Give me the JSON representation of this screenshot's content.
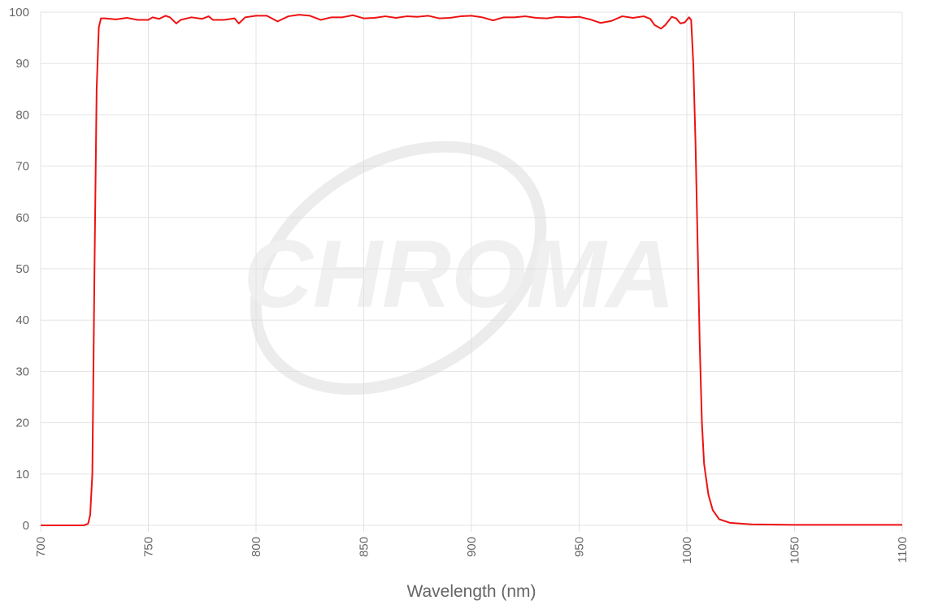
{
  "chart_data": {
    "type": "line",
    "x_label": "Wavelength (nm)",
    "watermark": "CHROMA",
    "xlim": [
      700,
      1100
    ],
    "ylim": [
      0,
      100
    ],
    "xticks": [
      700,
      750,
      800,
      850,
      900,
      950,
      1000,
      1050,
      1100
    ],
    "yticks": [
      0,
      10,
      20,
      30,
      40,
      50,
      60,
      70,
      80,
      90,
      100
    ],
    "grid": true,
    "x": [
      700,
      720,
      722,
      723,
      724,
      725,
      726,
      727,
      728,
      730,
      735,
      740,
      745,
      750,
      752,
      755,
      758,
      760,
      763,
      765,
      770,
      775,
      778,
      780,
      785,
      790,
      792,
      795,
      800,
      805,
      810,
      815,
      820,
      825,
      830,
      835,
      840,
      845,
      850,
      855,
      860,
      865,
      870,
      875,
      880,
      885,
      890,
      895,
      900,
      905,
      910,
      915,
      920,
      925,
      930,
      935,
      940,
      945,
      950,
      955,
      960,
      965,
      970,
      975,
      980,
      983,
      985,
      988,
      990,
      993,
      995,
      997,
      999,
      1001,
      1002,
      1003,
      1004,
      1005,
      1006,
      1007,
      1008,
      1010,
      1012,
      1015,
      1020,
      1030,
      1050,
      1100
    ],
    "series": [
      {
        "color": "#ee1111",
        "values": [
          0,
          0,
          0.3,
          2,
          10,
          50,
          85,
          97,
          98.8,
          98.8,
          98.6,
          98.9,
          98.5,
          98.5,
          99,
          98.7,
          99.3,
          99,
          97.8,
          98.5,
          99,
          98.7,
          99.2,
          98.5,
          98.5,
          98.8,
          97.8,
          99,
          99.3,
          99.3,
          98.2,
          99.2,
          99.5,
          99.3,
          98.5,
          99,
          99,
          99.4,
          98.8,
          98.9,
          99.2,
          98.9,
          99.2,
          99.1,
          99.3,
          98.8,
          98.9,
          99.2,
          99.3,
          99,
          98.4,
          99,
          99,
          99.2,
          98.9,
          98.8,
          99.1,
          99,
          99.1,
          98.6,
          97.9,
          98.3,
          99.2,
          98.9,
          99.2,
          98.7,
          97.5,
          96.8,
          97.5,
          99.1,
          98.8,
          97.8,
          98,
          99,
          98.5,
          90,
          75,
          55,
          35,
          20,
          12,
          6,
          3,
          1.2,
          0.5,
          0.2,
          0.1,
          0.1
        ]
      }
    ]
  }
}
